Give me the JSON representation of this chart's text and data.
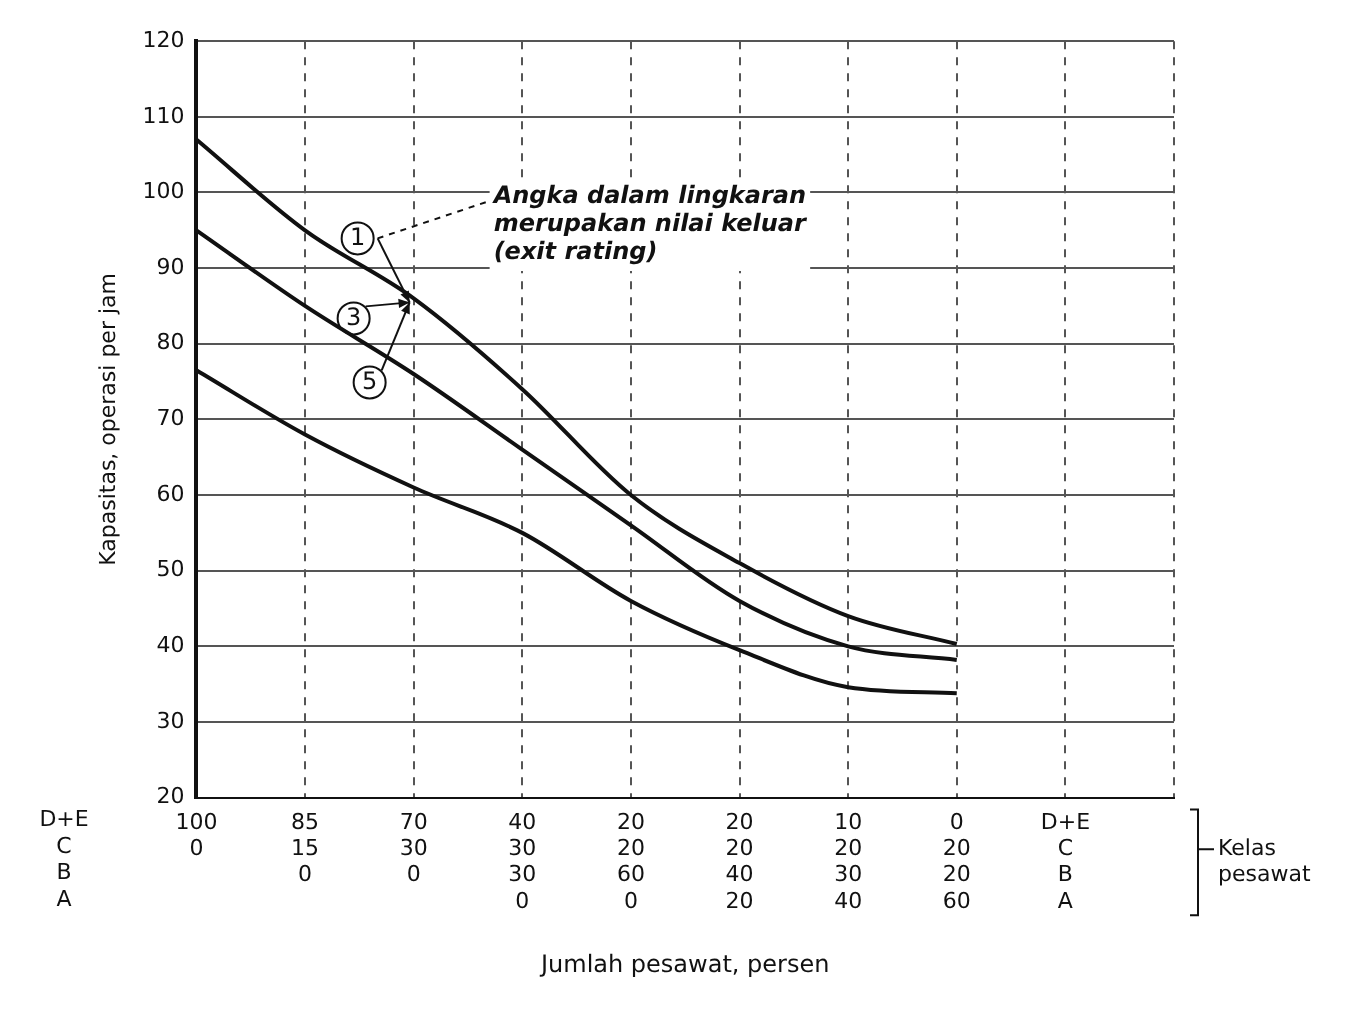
{
  "chart_data": {
    "type": "line",
    "xlabel": "Jumlah pesawat, persen",
    "ylabel": "Kapasitas, operasi per jam",
    "categories": [
      "100\n0\n\n",
      "85\n15\n0\n",
      "70\n30\n0\n",
      "40\n30\n30\n0",
      "20\n20\n60\n0",
      "20\n20\n40\n20",
      "10\n20\n30\n40",
      "0\n20\n20\n60",
      "D+E\nC\nB\nA",
      null
    ],
    "series": [
      {
        "color": "#111111",
        "values": [
          107,
          95,
          86,
          74,
          60,
          51,
          44,
          40.3,
          null,
          null
        ]
      },
      {
        "color": "#111111",
        "values": [
          95,
          85,
          76,
          66,
          56,
          46,
          40,
          38.2,
          null,
          null
        ]
      },
      {
        "color": "#111111",
        "values": [
          76.5,
          68,
          61,
          55,
          46,
          39.5,
          34.6,
          33.8,
          null,
          null
        ]
      }
    ],
    "ylim": [
      20,
      120
    ],
    "yticks": [
      20,
      30,
      40,
      50,
      60,
      70,
      80,
      90,
      100,
      110,
      120
    ],
    "grid": true,
    "legend": false,
    "marker": "none",
    "line_style": "solid",
    "annotations": [
      "Angka dalam lingkaran\nmerupakan nilai keluar\n(exit rating)",
      {
        "text": "1",
        "x": "70\n30\n0\n",
        "y": 86
      },
      {
        "text": "3",
        "x": "70\n30\n0\n",
        "y": 86
      },
      {
        "text": "5",
        "x": "70\n30\n0\n",
        "y": 86
      },
      "D+E\nC\nB\nA",
      "Kelas\npesawat"
    ]
  }
}
